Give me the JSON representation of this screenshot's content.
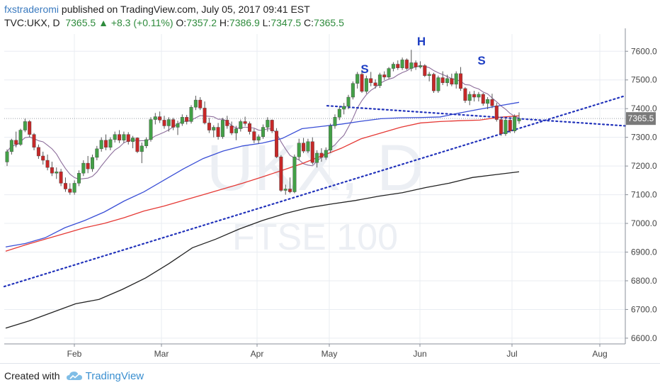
{
  "header": {
    "author": "fxstraderomi",
    "published": "published on TradingView.com, July 05, 2017 09:41 EST",
    "symbol": "TVC:UKX, D",
    "last": "7365.5",
    "change": "+8.3 (+0.11%)",
    "o_label": "O:",
    "o_value": "7357.2",
    "h_label": "H:",
    "h_value": "7386.9",
    "l_label": "L:",
    "l_value": "7347.5",
    "c_label": "C:",
    "c_value": "7365.5"
  },
  "watermark": {
    "symbol": "UKX, D",
    "name": "FTSE 100"
  },
  "annotations": {
    "left_shoulder": "S",
    "head": "H",
    "right_shoulder": "S"
  },
  "footer": {
    "created_with": "Created with",
    "brand": "TradingView"
  },
  "colors": {
    "up": "#43a047",
    "down": "#c62828",
    "ma_fast": "#8d6e9b",
    "ma_blue": "#3a4fd6",
    "ma_red": "#e53935",
    "ma_black": "#222222",
    "trend": "#2233bb",
    "price_tag": "#7a7a7a"
  },
  "chart_data": {
    "type": "candlestick",
    "ylim": [
      6580,
      7660
    ],
    "y_ticks": [
      "7600.0",
      "7500.0",
      "7400.0",
      "7300.0",
      "7200.0",
      "7100.0",
      "7000.0",
      "6900.0",
      "6800.0",
      "6700.0",
      "6600.0"
    ],
    "x_ticks": [
      "Feb",
      "Mar",
      "Apr",
      "May",
      "Jun",
      "Jul",
      "Aug"
    ],
    "current_price": "7365.5",
    "candles": [
      [
        7214,
        7258,
        7200,
        7250
      ],
      [
        7250,
        7295,
        7240,
        7290
      ],
      [
        7290,
        7320,
        7265,
        7275
      ],
      [
        7275,
        7330,
        7270,
        7325
      ],
      [
        7325,
        7365,
        7318,
        7355
      ],
      [
        7355,
        7360,
        7300,
        7310
      ],
      [
        7310,
        7315,
        7255,
        7265
      ],
      [
        7265,
        7275,
        7225,
        7235
      ],
      [
        7235,
        7250,
        7205,
        7220
      ],
      [
        7220,
        7240,
        7185,
        7195
      ],
      [
        7195,
        7215,
        7165,
        7175
      ],
      [
        7175,
        7195,
        7155,
        7180
      ],
      [
        7180,
        7190,
        7130,
        7140
      ],
      [
        7140,
        7160,
        7110,
        7120
      ],
      [
        7120,
        7140,
        7100,
        7108
      ],
      [
        7108,
        7150,
        7100,
        7140
      ],
      [
        7140,
        7185,
        7130,
        7175
      ],
      [
        7175,
        7220,
        7165,
        7210
      ],
      [
        7210,
        7235,
        7175,
        7190
      ],
      [
        7190,
        7240,
        7180,
        7230
      ],
      [
        7230,
        7270,
        7220,
        7260
      ],
      [
        7260,
        7300,
        7250,
        7290
      ],
      [
        7290,
        7310,
        7255,
        7265
      ],
      [
        7265,
        7300,
        7255,
        7292
      ],
      [
        7292,
        7320,
        7282,
        7310
      ],
      [
        7310,
        7325,
        7280,
        7290
      ],
      [
        7290,
        7320,
        7280,
        7310
      ],
      [
        7310,
        7318,
        7275,
        7285
      ],
      [
        7285,
        7305,
        7262,
        7298
      ],
      [
        7298,
        7300,
        7245,
        7250
      ],
      [
        7250,
        7282,
        7210,
        7270
      ],
      [
        7270,
        7300,
        7262,
        7292
      ],
      [
        7292,
        7370,
        7285,
        7362
      ],
      [
        7362,
        7385,
        7345,
        7372
      ],
      [
        7372,
        7390,
        7350,
        7360
      ],
      [
        7360,
        7375,
        7330,
        7340
      ],
      [
        7340,
        7370,
        7320,
        7362
      ],
      [
        7362,
        7368,
        7325,
        7335
      ],
      [
        7335,
        7358,
        7308,
        7348
      ],
      [
        7348,
        7380,
        7340,
        7370
      ],
      [
        7370,
        7378,
        7345,
        7355
      ],
      [
        7355,
        7412,
        7348,
        7405
      ],
      [
        7405,
        7445,
        7395,
        7430
      ],
      [
        7430,
        7440,
        7395,
        7402
      ],
      [
        7402,
        7425,
        7345,
        7350
      ],
      [
        7350,
        7368,
        7315,
        7325
      ],
      [
        7325,
        7342,
        7300,
        7335
      ],
      [
        7335,
        7350,
        7292,
        7302
      ],
      [
        7302,
        7368,
        7295,
        7360
      ],
      [
        7360,
        7375,
        7330,
        7340
      ],
      [
        7340,
        7355,
        7308,
        7315
      ],
      [
        7315,
        7340,
        7290,
        7330
      ],
      [
        7330,
        7362,
        7320,
        7355
      ],
      [
        7355,
        7372,
        7340,
        7348
      ],
      [
        7348,
        7355,
        7310,
        7320
      ],
      [
        7320,
        7330,
        7280,
        7290
      ],
      [
        7290,
        7310,
        7278,
        7302
      ],
      [
        7302,
        7345,
        7295,
        7335
      ],
      [
        7335,
        7370,
        7320,
        7360
      ],
      [
        7360,
        7362,
        7315,
        7322
      ],
      [
        7322,
        7332,
        7228,
        7232
      ],
      [
        7232,
        7238,
        7110,
        7115
      ],
      [
        7115,
        7135,
        7100,
        7120
      ],
      [
        7120,
        7160,
        7105,
        7110
      ],
      [
        7110,
        7240,
        7105,
        7232
      ],
      [
        7232,
        7295,
        7220,
        7280
      ],
      [
        7280,
        7298,
        7245,
        7252
      ],
      [
        7252,
        7295,
        7245,
        7285
      ],
      [
        7285,
        7300,
        7205,
        7212
      ],
      [
        7212,
        7255,
        7195,
        7245
      ],
      [
        7245,
        7262,
        7215,
        7230
      ],
      [
        7230,
        7265,
        7222,
        7255
      ],
      [
        7255,
        7348,
        7245,
        7340
      ],
      [
        7340,
        7380,
        7330,
        7370
      ],
      [
        7370,
        7405,
        7360,
        7398
      ],
      [
        7398,
        7420,
        7380,
        7408
      ],
      [
        7408,
        7448,
        7398,
        7440
      ],
      [
        7440,
        7495,
        7432,
        7488
      ],
      [
        7488,
        7528,
        7470,
        7520
      ],
      [
        7520,
        7535,
        7455,
        7460
      ],
      [
        7460,
        7515,
        7452,
        7505
      ],
      [
        7505,
        7528,
        7478,
        7490
      ],
      [
        7490,
        7502,
        7470,
        7480
      ],
      [
        7480,
        7525,
        7472,
        7518
      ],
      [
        7518,
        7530,
        7500,
        7510
      ],
      [
        7510,
        7545,
        7505,
        7540
      ],
      [
        7540,
        7562,
        7530,
        7555
      ],
      [
        7555,
        7568,
        7535,
        7542
      ],
      [
        7542,
        7578,
        7535,
        7570
      ],
      [
        7570,
        7575,
        7535,
        7540
      ],
      [
        7540,
        7605,
        7530,
        7560
      ],
      [
        7560,
        7568,
        7535,
        7545
      ],
      [
        7545,
        7565,
        7540,
        7550
      ],
      [
        7550,
        7555,
        7510,
        7515
      ],
      [
        7515,
        7528,
        7495,
        7520
      ],
      [
        7520,
        7525,
        7455,
        7462
      ],
      [
        7462,
        7515,
        7455,
        7508
      ],
      [
        7508,
        7530,
        7482,
        7490
      ],
      [
        7490,
        7518,
        7478,
        7505
      ],
      [
        7505,
        7522,
        7478,
        7485
      ],
      [
        7485,
        7530,
        7470,
        7522
      ],
      [
        7522,
        7545,
        7462,
        7470
      ],
      [
        7470,
        7475,
        7420,
        7428
      ],
      [
        7428,
        7460,
        7412,
        7450
      ],
      [
        7450,
        7462,
        7425,
        7440
      ],
      [
        7440,
        7458,
        7425,
        7450
      ],
      [
        7450,
        7455,
        7410,
        7418
      ],
      [
        7418,
        7440,
        7398,
        7432
      ],
      [
        7432,
        7452,
        7402,
        7410
      ],
      [
        7410,
        7420,
        7355,
        7362
      ],
      [
        7362,
        7370,
        7305,
        7312
      ],
      [
        7312,
        7368,
        7305,
        7360
      ],
      [
        7360,
        7368,
        7315,
        7322
      ],
      [
        7322,
        7380,
        7315,
        7372
      ],
      [
        7357,
        7387,
        7347,
        7365
      ]
    ],
    "series": [
      {
        "key": "fast_ma",
        "values_from": "candles"
      },
      {
        "key": "ma_blue",
        "values": [
          6918,
          6930,
          6950,
          6985,
          7010,
          7040,
          7078,
          7110,
          7150,
          7190,
          7226,
          7252,
          7270,
          7280,
          7296,
          7330,
          7338,
          7346,
          7356,
          7365,
          7368,
          7369,
          7371,
          7385,
          7398,
          7410,
          7422
        ]
      },
      {
        "key": "ma_red",
        "values": [
          6903,
          6925,
          6945,
          6965,
          6985,
          7000,
          7020,
          7043,
          7060,
          7080,
          7100,
          7120,
          7140,
          7162,
          7185,
          7208,
          7235,
          7262,
          7295,
          7315,
          7335,
          7350,
          7355,
          7358,
          7360,
          7370,
          7375
        ]
      },
      {
        "key": "ma_black",
        "values": [
          6635,
          6660,
          6690,
          6720,
          6735,
          6770,
          6810,
          6860,
          6915,
          6945,
          6980,
          7010,
          7035,
          7055,
          7068,
          7080,
          7095,
          7107,
          7125,
          7140,
          7160,
          7170,
          7180
        ]
      }
    ],
    "trendlines": [
      {
        "name": "rising support",
        "from": [
          "start",
          6780
        ],
        "to": [
          "Aug+",
          7445
        ]
      },
      {
        "name": "neckline",
        "from": [
          "early May",
          7410
        ],
        "to": [
          "Aug+",
          7340
        ]
      }
    ]
  }
}
